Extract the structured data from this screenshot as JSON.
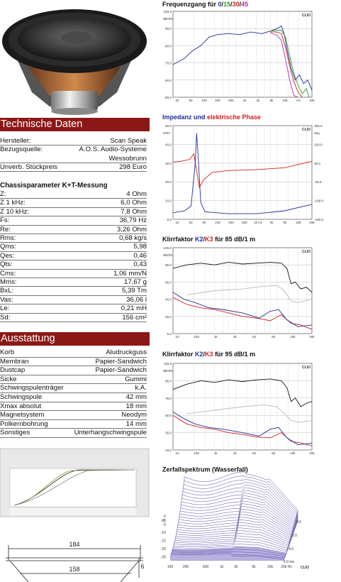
{
  "left": {
    "facts": {
      "title": "Technische Daten",
      "rows": [
        {
          "label": "Hersteller:",
          "value": [
            "Scan Speak"
          ]
        },
        {
          "label": "Bezugsquelle:",
          "value": [
            "A.O.S. Audio-Systeme",
            "Wessobrunn"
          ]
        },
        {
          "label": "Unverb. Stückpreis",
          "value": [
            "298 Euro"
          ]
        }
      ]
    },
    "params": {
      "title": "Chassisparameter K+T-Messung",
      "rows": [
        {
          "label": "Z:",
          "value": [
            "4 Ohm"
          ]
        },
        {
          "label": "Z 1 kHz:",
          "value": [
            "6,0 Ohm"
          ]
        },
        {
          "label": "Z 10 kHz:",
          "value": [
            "7,8 Ohm"
          ]
        },
        {
          "label": "Fs:",
          "value": [
            "36,79 Hz"
          ]
        },
        {
          "label": "Re:",
          "value": [
            "3,26 Ohm"
          ]
        },
        {
          "label": "Rms:",
          "value": [
            "0,68 kg/s"
          ]
        },
        {
          "label": "Qms:",
          "value": [
            "5,98"
          ]
        },
        {
          "label": "Qes:",
          "value": [
            "0,46"
          ]
        },
        {
          "label": "Qts:",
          "value": [
            "0,43"
          ]
        },
        {
          "label": "Cms:",
          "value": [
            "1,06 mm/N"
          ]
        },
        {
          "label": "Mms:",
          "value": [
            "17,67 g"
          ]
        },
        {
          "label": "BxL:",
          "value": [
            "5,39 Tm"
          ]
        },
        {
          "label": "Vas:",
          "value": [
            "36,06 l"
          ]
        },
        {
          "label": "Le:",
          "value": [
            "0,21 mH"
          ]
        },
        {
          "label": "Sd:",
          "value": [
            "156 cm²"
          ]
        }
      ]
    },
    "equipment": {
      "title": "Ausstattung",
      "rows": [
        {
          "label": "Korb",
          "value": [
            "Aludruckguss"
          ]
        },
        {
          "label": "Membran",
          "value": [
            "Papier-Sandwich"
          ]
        },
        {
          "label": "Dustcap",
          "value": [
            "Papier-Sandwich"
          ]
        },
        {
          "label": "Sicke",
          "value": [
            "Gummi"
          ]
        },
        {
          "label": "Schwingspulenträger",
          "value": [
            "k.A."
          ]
        },
        {
          "label": "Schwingspule",
          "value": [
            "42 mm"
          ]
        },
        {
          "label": "Xmax absolut",
          "value": [
            "18 mm"
          ]
        },
        {
          "label": "Magnetsystem",
          "value": [
            "Neodym"
          ]
        },
        {
          "label": "Polkernbohrung",
          "value": [
            "14 mm"
          ]
        },
        {
          "label": "Sonstiges",
          "value": [
            "Unterhangschwingspule"
          ]
        }
      ]
    },
    "dimensions": [
      "184",
      "158",
      "6"
    ]
  },
  "charts": [
    {
      "title_parts": [
        {
          "text": "Frequenzgang für ",
          "color": "#111111"
        },
        {
          "text": "0",
          "color": "#1f2f9a"
        },
        {
          "text": "/",
          "color": "#111111"
        },
        {
          "text": "15",
          "color": "#2aa02a"
        },
        {
          "text": "/",
          "color": "#111111"
        },
        {
          "text": "30",
          "color": "#d42020"
        },
        {
          "text": "/",
          "color": "#111111"
        },
        {
          "text": "45",
          "color": "#b02cb0"
        }
      ],
      "y_unit": "dBSPL",
      "yticks": [
        "100.0",
        "90.0",
        "80.0",
        "70.0",
        "60.0",
        "50.0"
      ],
      "xticks": [
        "20",
        "50",
        "100",
        "200",
        "500",
        "1k",
        "2k",
        "5k",
        "10k",
        "Hz",
        "40k"
      ],
      "brand": "CLIO"
    },
    {
      "title_parts": [
        {
          "text": "Impedanz und ",
          "color": "#1f2f9a"
        },
        {
          "text": "elektrische Phase",
          "color": "#d42020"
        }
      ],
      "y_unit": "Ohm",
      "yticks": [
        "50.0",
        "40.0",
        "30.0",
        "20.0",
        "10.0",
        "0.0"
      ],
      "y2_unit": "deg",
      "y2ticks": [
        "180.0",
        "108.0",
        "36.0",
        "-36.0",
        "-108.0",
        "-180.0"
      ],
      "xticks": [
        "10",
        "20",
        "50",
        "100",
        "200",
        "500",
        "1k Hz",
        "2k",
        "5k",
        "10k",
        "20k"
      ],
      "brand": "CLIO"
    },
    {
      "title_parts": [
        {
          "text": "Klirrfaktor ",
          "color": "#111111"
        },
        {
          "text": "K2",
          "color": "#1f2f9a"
        },
        {
          "text": "/",
          "color": "#111111"
        },
        {
          "text": "K3",
          "color": "#d42020"
        },
        {
          "text": " für 85 dB/1 m",
          "color": "#111111"
        }
      ],
      "y_unit": "dBSPL",
      "yticks": [
        "105.0",
        "85.0",
        "65.0",
        "45.0",
        "25.0",
        "5.0"
      ],
      "xticks": [
        "10",
        "100",
        "1k",
        "2k",
        "Hz",
        "5k",
        "10k",
        "20k"
      ],
      "brand": "CLIO"
    },
    {
      "title_parts": [
        {
          "text": "Klirrfaktor ",
          "color": "#111111"
        },
        {
          "text": "K2",
          "color": "#1f2f9a"
        },
        {
          "text": "/",
          "color": "#111111"
        },
        {
          "text": "K3",
          "color": "#d42020"
        },
        {
          "text": " für 95 dB/1 m",
          "color": "#111111"
        }
      ],
      "y_unit": "dBSPL",
      "yticks": [
        "115.0",
        "95.0",
        "75.0",
        "55.0",
        "35.0",
        "15.0"
      ],
      "xticks": [
        "10",
        "100",
        "1k",
        "2k",
        "Hz",
        "5k",
        "10k",
        "20k"
      ],
      "brand": "CLIO"
    }
  ],
  "waterfall": {
    "title": "Zerfallspektrum (Wasserfall)",
    "z_unit": "dB",
    "zticks": [
      "0",
      "-5",
      "-10",
      "-15",
      "-20",
      "-25"
    ],
    "xticks": [
      "100",
      "200",
      "500",
      "1k",
      "2k",
      "5k",
      "10k",
      "20k Hz"
    ],
    "tticks": [
      "0.0",
      "2.0",
      "4.0",
      "6.0 ms"
    ],
    "brand": "CLIO"
  }
}
